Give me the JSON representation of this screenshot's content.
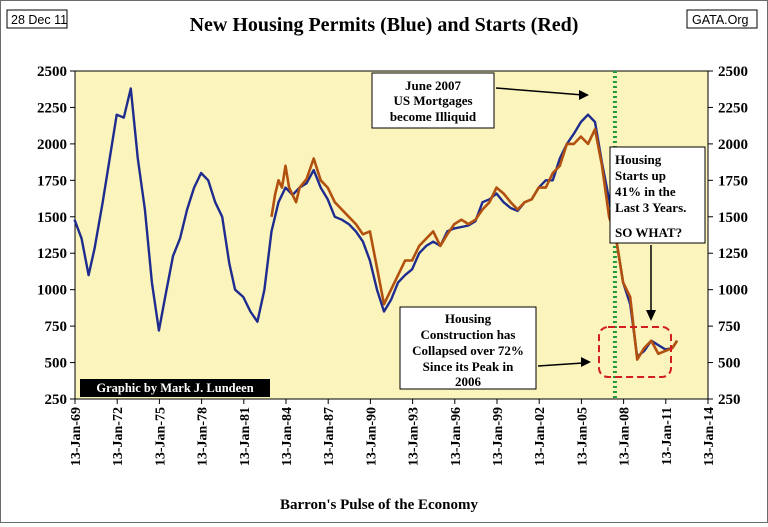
{
  "header": {
    "date_label": "28 Dec 11",
    "source_label": "GATA.Org"
  },
  "colors": {
    "plot_bg": "#fbf4bc",
    "permits": "#1f2c8f",
    "starts": "#b1500f",
    "marker": "#1f9a3e",
    "box": "#d21e1e"
  },
  "chart_data": {
    "type": "line",
    "title": "New Housing Permits (Blue) and Starts (Red)",
    "xlabel": "Barron's Pulse of the Economy",
    "ylabel": "",
    "ylim": [
      250,
      2500
    ],
    "xlim": [
      "1969-01-13",
      "2014-01-13"
    ],
    "y_ticks": [
      2500,
      2250,
      2000,
      1750,
      1500,
      1250,
      1000,
      750,
      500,
      250
    ],
    "x_ticks": [
      "13-Jan-69",
      "13-Jan-72",
      "13-Jan-75",
      "13-Jan-78",
      "13-Jan-81",
      "13-Jan-84",
      "13-Jan-87",
      "13-Jan-90",
      "13-Jan-93",
      "13-Jan-96",
      "13-Jan-99",
      "13-Jan-02",
      "13-Jan-05",
      "13-Jan-08",
      "13-Jan-11",
      "13-Jan-14"
    ],
    "grid": false,
    "series": [
      {
        "name": "Permits",
        "x": [
          "1969-01",
          "1969-07",
          "1970-01",
          "1970-06",
          "1971-01",
          "1971-07",
          "1972-01",
          "1972-07",
          "1973-01",
          "1973-07",
          "1974-01",
          "1974-07",
          "1975-01",
          "1975-07",
          "1976-01",
          "1976-07",
          "1977-01",
          "1977-07",
          "1978-01",
          "1978-07",
          "1979-01",
          "1979-07",
          "1980-01",
          "1980-06",
          "1981-01",
          "1981-07",
          "1982-01",
          "1982-07",
          "1983-01",
          "1983-07",
          "1984-01",
          "1984-07",
          "1985-01",
          "1985-07",
          "1986-01",
          "1986-07",
          "1987-01",
          "1987-07",
          "1988-01",
          "1988-07",
          "1989-01",
          "1989-07",
          "1990-01",
          "1990-07",
          "1991-01",
          "1991-07",
          "1992-01",
          "1992-07",
          "1993-01",
          "1993-07",
          "1994-01",
          "1994-07",
          "1995-01",
          "1995-07",
          "1996-01",
          "1996-07",
          "1997-01",
          "1997-07",
          "1998-01",
          "1998-07",
          "1999-01",
          "1999-07",
          "2000-01",
          "2000-07",
          "2001-01",
          "2001-07",
          "2002-01",
          "2002-07",
          "2003-01",
          "2003-07",
          "2004-01",
          "2004-07",
          "2005-01",
          "2005-07",
          "2006-01",
          "2006-07",
          "2007-01",
          "2007-07",
          "2008-01",
          "2008-07",
          "2009-01",
          "2009-07",
          "2010-01",
          "2010-07",
          "2011-01",
          "2011-07",
          "2011-11"
        ],
        "values": [
          1480,
          1350,
          1100,
          1280,
          1600,
          1900,
          2200,
          2180,
          2380,
          1900,
          1550,
          1050,
          720,
          980,
          1230,
          1350,
          1550,
          1700,
          1800,
          1750,
          1600,
          1500,
          1180,
          1000,
          950,
          850,
          780,
          1000,
          1400,
          1600,
          1700,
          1650,
          1700,
          1730,
          1820,
          1700,
          1620,
          1500,
          1480,
          1450,
          1400,
          1330,
          1200,
          1000,
          850,
          930,
          1050,
          1100,
          1140,
          1250,
          1300,
          1330,
          1300,
          1400,
          1420,
          1430,
          1440,
          1470,
          1600,
          1620,
          1660,
          1600,
          1560,
          1540,
          1600,
          1620,
          1700,
          1750,
          1750,
          1900,
          2000,
          2070,
          2150,
          2200,
          2150,
          1870,
          1620,
          1350,
          1050,
          900,
          540,
          580,
          650,
          620,
          590,
          600,
          650
        ]
      },
      {
        "name": "Starts",
        "x": [
          "1983-01",
          "1983-04",
          "1983-07",
          "1983-10",
          "1984-01",
          "1984-04",
          "1984-07",
          "1984-10",
          "1985-01",
          "1985-07",
          "1986-01",
          "1986-07",
          "1987-01",
          "1987-07",
          "1988-01",
          "1988-07",
          "1989-01",
          "1989-07",
          "1990-01",
          "1990-07",
          "1991-01",
          "1991-07",
          "1992-01",
          "1992-07",
          "1993-01",
          "1993-07",
          "1994-01",
          "1994-07",
          "1995-01",
          "1995-07",
          "1996-01",
          "1996-07",
          "1997-01",
          "1997-07",
          "1998-01",
          "1998-07",
          "1999-01",
          "1999-07",
          "2000-01",
          "2000-07",
          "2001-01",
          "2001-07",
          "2002-01",
          "2002-07",
          "2003-01",
          "2003-07",
          "2004-01",
          "2004-07",
          "2005-01",
          "2005-07",
          "2006-01",
          "2006-07",
          "2007-01",
          "2007-07",
          "2008-01",
          "2008-07",
          "2009-01",
          "2009-07",
          "2010-01",
          "2010-07",
          "2011-01",
          "2011-07",
          "2011-11"
        ],
        "values": [
          1500,
          1650,
          1750,
          1700,
          1850,
          1700,
          1650,
          1600,
          1700,
          1760,
          1900,
          1750,
          1700,
          1600,
          1550,
          1500,
          1450,
          1380,
          1400,
          1150,
          900,
          1000,
          1100,
          1200,
          1200,
          1300,
          1350,
          1400,
          1300,
          1380,
          1450,
          1480,
          1450,
          1480,
          1550,
          1600,
          1700,
          1660,
          1600,
          1550,
          1600,
          1620,
          1700,
          1700,
          1800,
          1850,
          2000,
          2000,
          2050,
          2000,
          2100,
          1850,
          1500,
          1350,
          1050,
          950,
          520,
          600,
          650,
          560,
          580,
          600,
          650
        ]
      }
    ],
    "annotations": [
      {
        "text": [
          "June 2007",
          "US Mortgages",
          "become Illiquid"
        ]
      },
      {
        "text": [
          "Housing",
          "Starts up",
          "41% in the",
          "Last 3 Years.",
          "",
          "SO WHAT?"
        ]
      },
      {
        "text": [
          "Housing",
          "Construction has",
          "Collapsed over 72%",
          "Since its Peak in",
          "2006"
        ]
      },
      {
        "text": [
          "Graphic by Mark J. Lundeen"
        ]
      }
    ],
    "event_line": {
      "date": "2007-06-01"
    }
  }
}
